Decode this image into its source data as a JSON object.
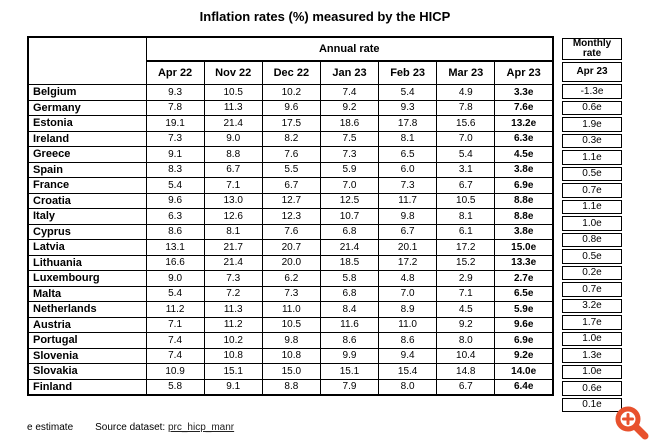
{
  "title": "Inflation rates (%) measured by the HICP",
  "table": {
    "group_header": "Annual rate",
    "columns": [
      "Apr 22",
      "Nov 22",
      "Dec 22",
      "Jan 23",
      "Feb 23",
      "Mar 23",
      "Apr 23"
    ],
    "rows": [
      {
        "country": "Belgium",
        "values": [
          "9.3",
          "10.5",
          "10.2",
          "7.4",
          "5.4",
          "4.9",
          "3.3e"
        ],
        "monthly": "-1.3e"
      },
      {
        "country": "Germany",
        "values": [
          "7.8",
          "11.3",
          "9.6",
          "9.2",
          "9.3",
          "7.8",
          "7.6e"
        ],
        "monthly": "0.6e"
      },
      {
        "country": "Estonia",
        "values": [
          "19.1",
          "21.4",
          "17.5",
          "18.6",
          "17.8",
          "15.6",
          "13.2e"
        ],
        "monthly": "1.9e"
      },
      {
        "country": "Ireland",
        "values": [
          "7.3",
          "9.0",
          "8.2",
          "7.5",
          "8.1",
          "7.0",
          "6.3e"
        ],
        "monthly": "0.3e"
      },
      {
        "country": "Greece",
        "values": [
          "9.1",
          "8.8",
          "7.6",
          "7.3",
          "6.5",
          "5.4",
          "4.5e"
        ],
        "monthly": "1.1e"
      },
      {
        "country": "Spain",
        "values": [
          "8.3",
          "6.7",
          "5.5",
          "5.9",
          "6.0",
          "3.1",
          "3.8e"
        ],
        "monthly": "0.5e"
      },
      {
        "country": "France",
        "values": [
          "5.4",
          "7.1",
          "6.7",
          "7.0",
          "7.3",
          "6.7",
          "6.9e"
        ],
        "monthly": "0.7e"
      },
      {
        "country": "Croatia",
        "values": [
          "9.6",
          "13.0",
          "12.7",
          "12.5",
          "11.7",
          "10.5",
          "8.8e"
        ],
        "monthly": "1.1e"
      },
      {
        "country": "Italy",
        "values": [
          "6.3",
          "12.6",
          "12.3",
          "10.7",
          "9.8",
          "8.1",
          "8.8e"
        ],
        "monthly": "1.0e"
      },
      {
        "country": "Cyprus",
        "values": [
          "8.6",
          "8.1",
          "7.6",
          "6.8",
          "6.7",
          "6.1",
          "3.8e"
        ],
        "monthly": "0.8e"
      },
      {
        "country": "Latvia",
        "values": [
          "13.1",
          "21.7",
          "20.7",
          "21.4",
          "20.1",
          "17.2",
          "15.0e"
        ],
        "monthly": "0.5e"
      },
      {
        "country": "Lithuania",
        "values": [
          "16.6",
          "21.4",
          "20.0",
          "18.5",
          "17.2",
          "15.2",
          "13.3e"
        ],
        "monthly": "0.2e"
      },
      {
        "country": "Luxembourg",
        "values": [
          "9.0",
          "7.3",
          "6.2",
          "5.8",
          "4.8",
          "2.9",
          "2.7e"
        ],
        "monthly": "0.7e"
      },
      {
        "country": "Malta",
        "values": [
          "5.4",
          "7.2",
          "7.3",
          "6.8",
          "7.0",
          "7.1",
          "6.5e"
        ],
        "monthly": "3.2e"
      },
      {
        "country": "Netherlands",
        "values": [
          "11.2",
          "11.3",
          "11.0",
          "8.4",
          "8.9",
          "4.5",
          "5.9e"
        ],
        "monthly": "1.7e"
      },
      {
        "country": "Austria",
        "values": [
          "7.1",
          "11.2",
          "10.5",
          "11.6",
          "11.0",
          "9.2",
          "9.6e"
        ],
        "monthly": "1.0e"
      },
      {
        "country": "Portugal",
        "values": [
          "7.4",
          "10.2",
          "9.8",
          "8.6",
          "8.6",
          "8.0",
          "6.9e"
        ],
        "monthly": "1.3e"
      },
      {
        "country": "Slovenia",
        "values": [
          "7.4",
          "10.8",
          "10.8",
          "9.9",
          "9.4",
          "10.4",
          "9.2e"
        ],
        "monthly": "1.0e"
      },
      {
        "country": "Slovakia",
        "values": [
          "10.9",
          "15.1",
          "15.0",
          "15.1",
          "15.4",
          "14.8",
          "14.0e"
        ],
        "monthly": "0.6e"
      },
      {
        "country": "Finland",
        "values": [
          "5.8",
          "9.1",
          "8.8",
          "7.9",
          "8.0",
          "6.7",
          "6.4e"
        ],
        "monthly": "0.1e"
      }
    ]
  },
  "monthly_table": {
    "group_header": "Monthly rate",
    "column": "Apr 23"
  },
  "footer": {
    "estimate_note": "e estimate",
    "source_label": "Source dataset:",
    "source_link": "prc_hicp_manr"
  },
  "colors": {
    "accent": "#e8512d",
    "border": "#000000",
    "link_text": "#222222",
    "background": "#ffffff"
  }
}
